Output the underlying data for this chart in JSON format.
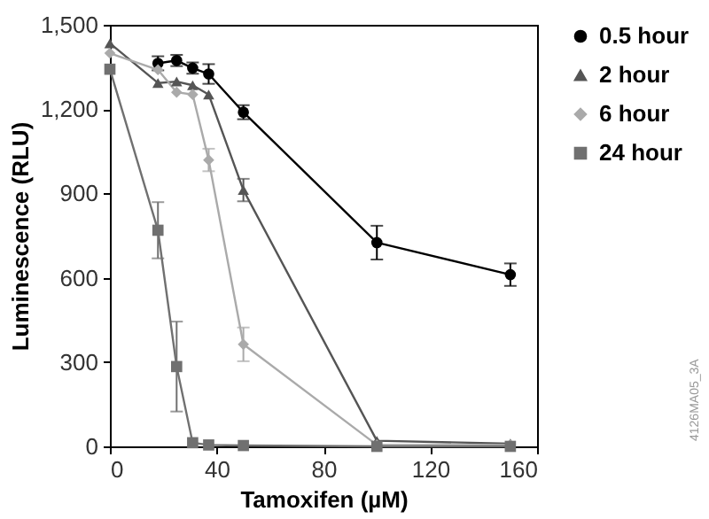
{
  "chart_data": {
    "type": "line",
    "xlabel": "Tamoxifen (µM)",
    "ylabel": "Luminescence (RLU)",
    "x": [
      0,
      18,
      25,
      31,
      37,
      50,
      100,
      150
    ],
    "xlim": [
      0,
      160
    ],
    "xticks": [
      0,
      40,
      80,
      120,
      160
    ],
    "ylim": [
      0,
      1500
    ],
    "yticks": [
      0,
      300,
      600,
      900,
      {
        "value": 1200,
        "label": "1,200"
      },
      {
        "value": 1500,
        "label": "1,500"
      }
    ],
    "grid": false,
    "legend": "right",
    "line_style": "solid",
    "series": [
      {
        "name": "0.5 hour",
        "color": "#000000",
        "marker": "circle",
        "values": [
          null,
          1363,
          1373,
          1346,
          1325,
          1189,
          725,
          611
        ],
        "errors": [
          null,
          25,
          20,
          20,
          35,
          25,
          60,
          40
        ]
      },
      {
        "name": "2 hour",
        "color": "#555555",
        "marker": "triangle",
        "values": [
          1434,
          1293,
          1298,
          1285,
          1252,
          912,
          20,
          10
        ],
        "errors": [
          null,
          null,
          null,
          null,
          null,
          40,
          null,
          null
        ]
      },
      {
        "name": "6 hour",
        "color": "#aaaaaa",
        "marker": "diamond",
        "values": [
          1399,
          1340,
          1260,
          1252,
          1019,
          363,
          5,
          5
        ],
        "errors": [
          null,
          null,
          null,
          null,
          40,
          60,
          null,
          null
        ]
      },
      {
        "name": "24 hour",
        "color": "#707070",
        "marker": "square",
        "values": [
          1342,
          769,
          284,
          13,
          5,
          3,
          0,
          0
        ],
        "errors": [
          null,
          100,
          160,
          null,
          null,
          null,
          null,
          null
        ]
      }
    ],
    "annotations": [
      "4126MA05_3A"
    ]
  }
}
